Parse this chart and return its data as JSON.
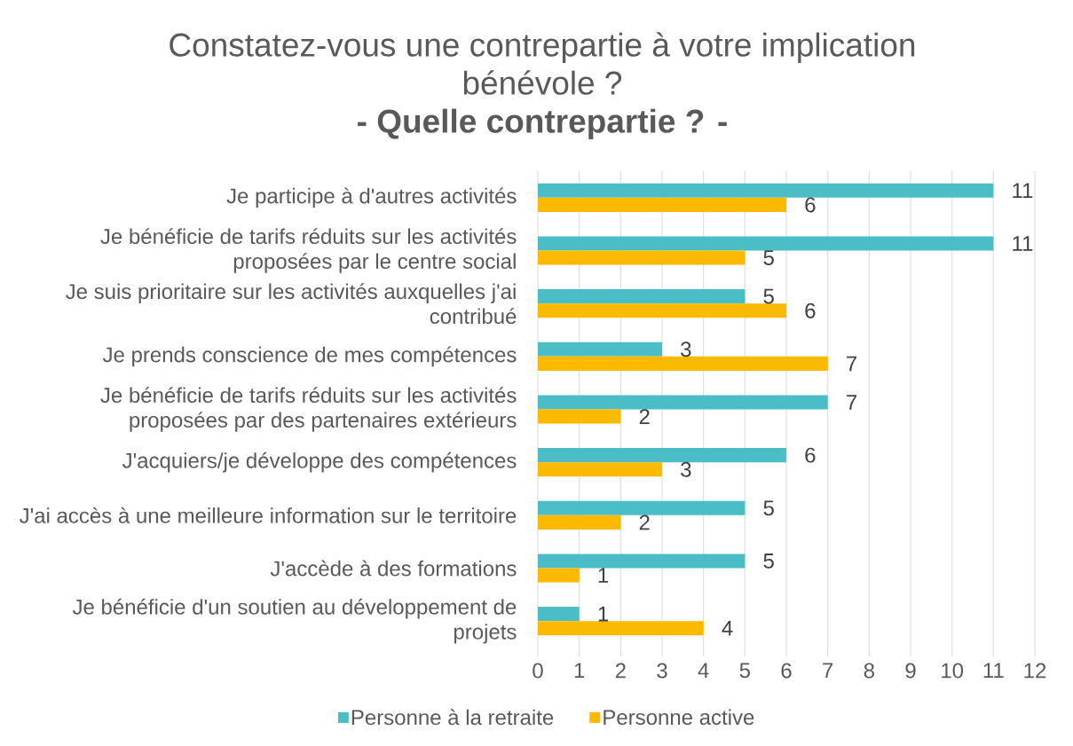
{
  "chart_data": {
    "type": "bar",
    "orientation": "horizontal",
    "title": "Constatez-vous une contrepartie à votre implication bénévole ?",
    "subtitle": "- Quelle contrepartie ? -",
    "categories": [
      "Je participe à d'autres activités",
      "Je bénéficie de tarifs réduits sur les activités proposées par le centre social",
      "Je suis prioritaire sur les activités auxquelles j'ai contribué",
      "Je prends conscience de mes compétences",
      "Je bénéficie de tarifs réduits sur les activités proposées par des partenaires extérieurs",
      "J'acquiers/je développe des compétences",
      "J'ai accès à une meilleure information sur le territoire",
      "J'accède à des formations",
      "Je bénéficie d'un soutien au développement de projets"
    ],
    "series": [
      {
        "name": "Personne à la retraite",
        "color": "#4BBDC7",
        "values": [
          11,
          11,
          5,
          3,
          7,
          6,
          5,
          5,
          1
        ]
      },
      {
        "name": "Personne active",
        "color": "#FBBA00",
        "values": [
          6,
          5,
          6,
          7,
          2,
          3,
          2,
          1,
          4
        ]
      }
    ],
    "xlim": [
      0,
      12
    ],
    "xticks": [
      0,
      1,
      2,
      3,
      4,
      5,
      6,
      7,
      8,
      9,
      10,
      11,
      12
    ],
    "grid": "x",
    "legend": "bottom",
    "data_labels": true
  }
}
